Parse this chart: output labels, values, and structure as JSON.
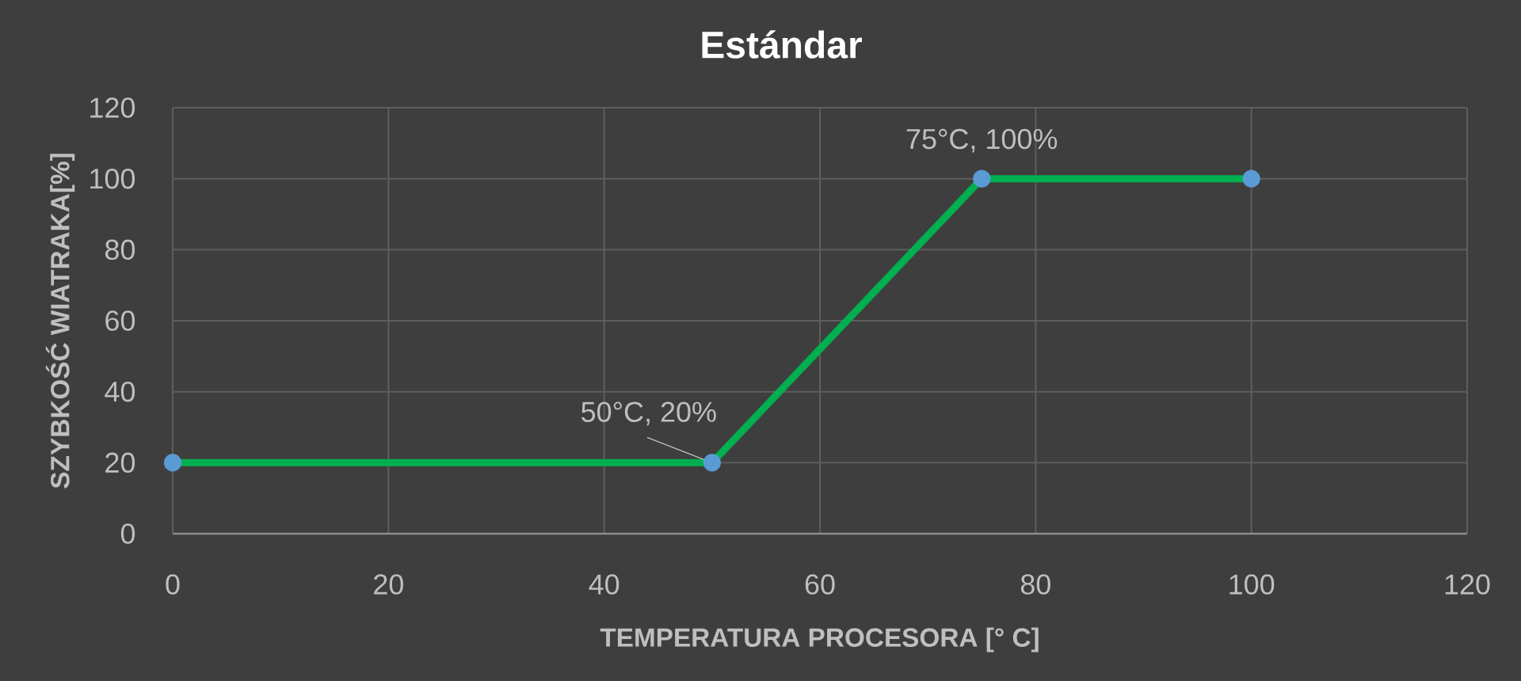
{
  "chart_data": {
    "type": "line",
    "title": "Estándar",
    "xlabel": "TEMPERATURA PROCESORA [° C]",
    "ylabel": "SZYBKOŚĆ WIATRAKA[%]",
    "x": [
      0,
      50,
      75,
      100
    ],
    "values": [
      20,
      20,
      100,
      100
    ],
    "color": "#00b050",
    "marker": "circle",
    "line_style": "solid",
    "xlim": [
      0,
      120
    ],
    "ylim": [
      0,
      120
    ],
    "xticks": [
      0,
      20,
      40,
      60,
      80,
      100,
      120
    ],
    "yticks": [
      0,
      20,
      40,
      60,
      80,
      100,
      120
    ],
    "grid": true,
    "annotations": [
      {
        "text": "50°C, 20%",
        "x": 50,
        "y": 20
      },
      {
        "text": "75°C, 100%",
        "x": 75,
        "y": 100
      }
    ]
  }
}
